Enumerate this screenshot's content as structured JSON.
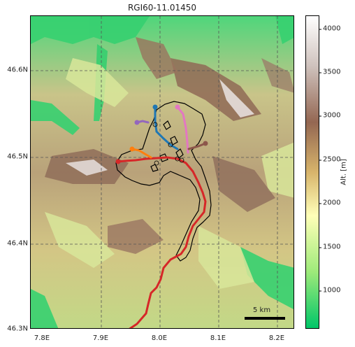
{
  "title": "RGI60-11.01450",
  "y_ticks": [
    "46.6N",
    "46.5N",
    "46.4N",
    "46.3N"
  ],
  "x_ticks": [
    "7.8E",
    "7.9E",
    "8.0E",
    "8.1E",
    "8.2E"
  ],
  "colorbar": {
    "label": "Alt. [m]",
    "ticks": [
      "4000",
      "3500",
      "3000",
      "2500",
      "2000",
      "1500",
      "1000"
    ],
    "min": 550,
    "max": 4150,
    "colors": [
      "#00c668",
      "#9eea7a",
      "#ffffb8",
      "#d7b46b",
      "#946752",
      "#cfc2bd",
      "#ffffff"
    ]
  },
  "scale_bar": {
    "label": "5 km"
  },
  "flowlines": [
    {
      "name": "red",
      "color": "#d62728"
    },
    {
      "name": "blue",
      "color": "#1f77b4"
    },
    {
      "name": "orange",
      "color": "#ff7f0e"
    },
    {
      "name": "purple",
      "color": "#9467bd"
    },
    {
      "name": "pink",
      "color": "#e377c2"
    },
    {
      "name": "brown",
      "color": "#8c564b"
    }
  ]
}
